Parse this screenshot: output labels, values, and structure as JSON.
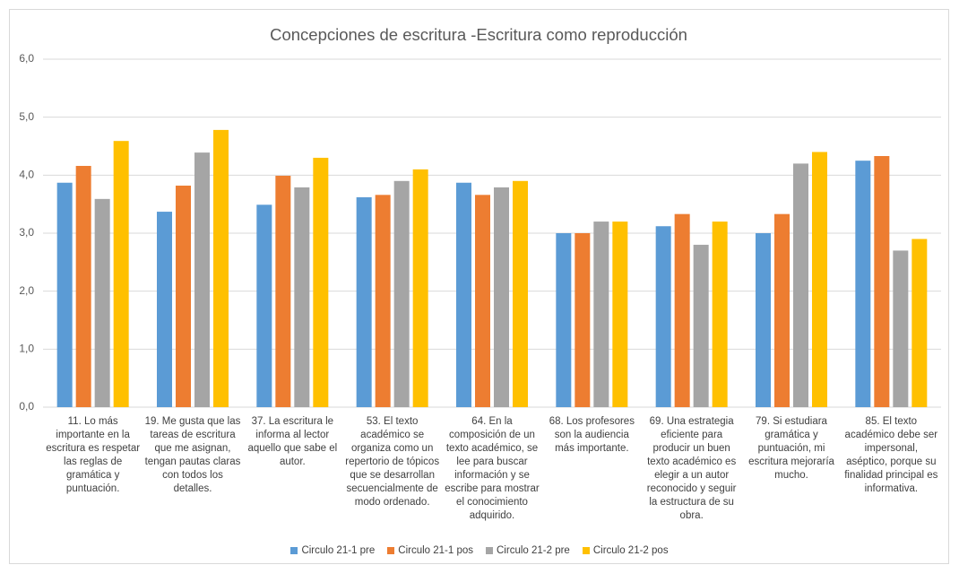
{
  "chart_data": {
    "type": "bar",
    "title": "Concepciones de escritura -Escritura como reproducción",
    "categories": [
      "11. Lo más importante en la escritura es respetar las reglas de gramática y puntuación.",
      "19. Me gusta que las tareas de escritura que me asignan, tengan pautas claras con todos los detalles.",
      "37. La escritura le informa al lector aquello que sabe el autor.",
      "53. El texto académico se organiza como un repertorio de tópicos que se desarrollan secuencialmente de modo ordenado.",
      "64. En la composición de un texto académico, se lee para buscar información y se escribe para mostrar el conocimiento adquirido.",
      "68. Los profesores son la audiencia más importante.",
      "69. Una estrategia eficiente para producir un buen texto académico es elegir a un autor reconocido y seguir la estructura de su obra.",
      "79. Si estudiara gramática y puntuación, mi escritura mejoraría mucho.",
      "85. El texto académico debe ser impersonal, aséptico, porque su finalidad principal es informativa."
    ],
    "series": [
      {
        "name": "Circulo 21-1 pre",
        "color": "#5b9bd5",
        "values": [
          3.87,
          3.37,
          3.49,
          3.62,
          3.87,
          3.0,
          3.12,
          3.0,
          4.25
        ]
      },
      {
        "name": "Circulo 21-1 pos",
        "color": "#ed7d31",
        "values": [
          4.16,
          3.82,
          3.99,
          3.66,
          3.66,
          3.0,
          3.33,
          3.33,
          4.33
        ]
      },
      {
        "name": "Circulo 21-2 pre",
        "color": "#a5a5a5",
        "values": [
          3.59,
          4.39,
          3.79,
          3.9,
          3.79,
          3.2,
          2.8,
          4.2,
          2.7
        ]
      },
      {
        "name": "Circulo 21-2 pos",
        "color": "#ffc000",
        "values": [
          4.59,
          4.78,
          4.3,
          4.1,
          3.9,
          3.2,
          3.2,
          4.4,
          2.9
        ]
      }
    ],
    "ylim": [
      0,
      6
    ],
    "yticks": [
      {
        "value": 0,
        "label": "0,0"
      },
      {
        "value": 1,
        "label": "1,0"
      },
      {
        "value": 2,
        "label": "2,0"
      },
      {
        "value": 3,
        "label": "3,0"
      },
      {
        "value": 4,
        "label": "4,0"
      },
      {
        "value": 5,
        "label": "5,0"
      },
      {
        "value": 6,
        "label": "6,0"
      }
    ],
    "grid": true,
    "legend": "bottom"
  }
}
